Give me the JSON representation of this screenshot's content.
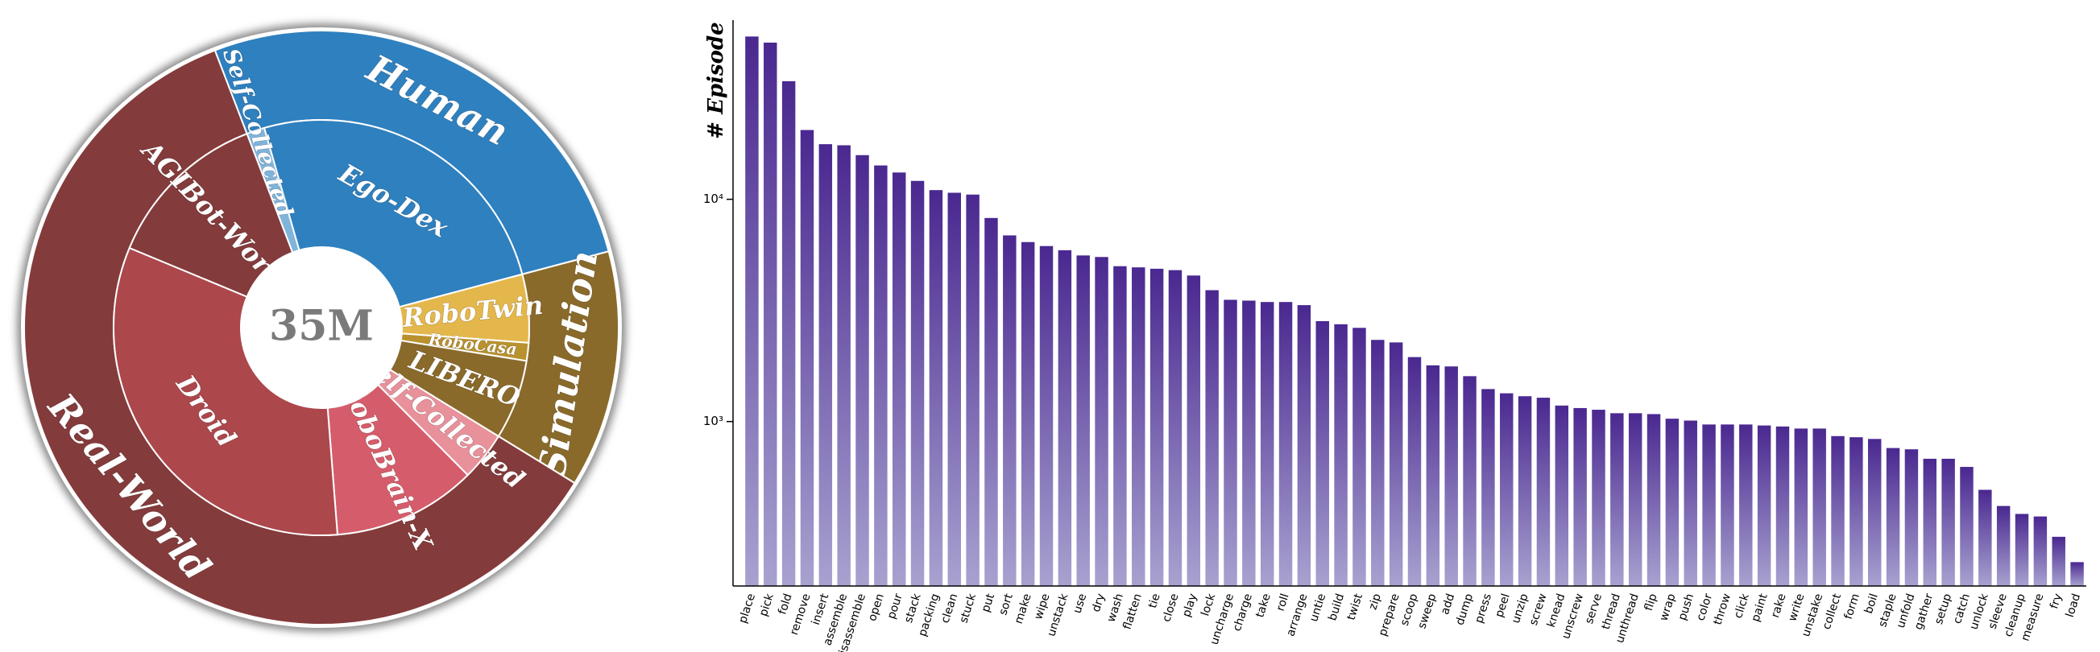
{
  "chart_data": [
    {
      "type": "sunburst",
      "center_label": "35M",
      "groups": [
        {
          "name": "Human",
          "color": "#2f80bf",
          "children": [
            {
              "name": "Self-Collected",
              "value": 1.4,
              "color": "#80b4da"
            },
            {
              "name": "Ego-Dex",
              "value": 25.3,
              "color": "#2f80bf"
            }
          ]
        },
        {
          "name": "Simulation",
          "color": "#8a6a2a",
          "children": [
            {
              "name": "RoboTwin",
              "value": 5.3,
              "color": "#e4b74c"
            },
            {
              "name": "RoboCasa",
              "value": 1.4,
              "color": "#b9922f"
            },
            {
              "name": "LIBERO",
              "value": 6.2,
              "color": "#8a6a2a"
            }
          ]
        },
        {
          "name": "Real-World",
          "color": "#843b3b",
          "children": [
            {
              "name": "Self-Collected",
              "value": 3.8,
              "color": "#e8919b"
            },
            {
              "name": "RoboBrain-X",
              "value": 11.2,
              "color": "#d55d6b"
            },
            {
              "name": "Droid",
              "value": 32.5,
              "color": "#ac474c"
            },
            {
              "name": "AGIBot-World",
              "value": 12.9,
              "color": "#843b3b"
            }
          ]
        }
      ]
    },
    {
      "type": "bar",
      "ylabel": "# Episode",
      "log_y": true,
      "gradient": {
        "top": "#4a2890",
        "bottom": "#a8a2d0"
      },
      "categories": [
        "place",
        "pick",
        "fold",
        "remove",
        "insert",
        "assemble",
        "disassemble",
        "open",
        "pour",
        "stack",
        "packing",
        "clean",
        "stuck",
        "put",
        "sort",
        "make",
        "wipe",
        "unstack",
        "use",
        "dry",
        "wash",
        "flatten",
        "tie",
        "close",
        "play",
        "lock",
        "uncharge",
        "charge",
        "take",
        "roll",
        "arrange",
        "untie",
        "build",
        "twist",
        "zip",
        "prepare",
        "scoop",
        "sweep",
        "add",
        "dump",
        "press",
        "peel",
        "unzip",
        "screw",
        "knead",
        "unscrew",
        "serve",
        "thread",
        "unthread",
        "flip",
        "wrap",
        "push",
        "color",
        "throw",
        "click",
        "paint",
        "rake",
        "write",
        "unstake",
        "collect",
        "form",
        "boil",
        "staple",
        "unfold",
        "gather",
        "setup",
        "catch",
        "unlock",
        "sleeve",
        "cleanup",
        "measure",
        "fry",
        "load"
      ],
      "values": [
        54000,
        50700,
        34000,
        20500,
        17700,
        17500,
        15800,
        14200,
        13200,
        12100,
        11000,
        10700,
        10500,
        8240,
        6880,
        6420,
        6160,
        5900,
        5590,
        5500,
        5000,
        4940,
        4870,
        4800,
        4540,
        3900,
        3530,
        3500,
        3450,
        3450,
        3340,
        2830,
        2740,
        2640,
        2330,
        2270,
        1950,
        1790,
        1770,
        1600,
        1400,
        1340,
        1300,
        1280,
        1180,
        1150,
        1130,
        1090,
        1090,
        1080,
        1030,
        1010,
        970,
        970,
        970,
        960,
        950,
        930,
        930,
        860,
        850,
        835,
        760,
        750,
        680,
        680,
        625,
        493,
        417,
        384,
        374,
        303,
        233
      ],
      "ylim": [
        182,
        64000
      ],
      "yticks": [
        {
          "value": 1000,
          "label": "10³"
        },
        {
          "value": 10000,
          "label": "10⁴"
        }
      ]
    }
  ]
}
